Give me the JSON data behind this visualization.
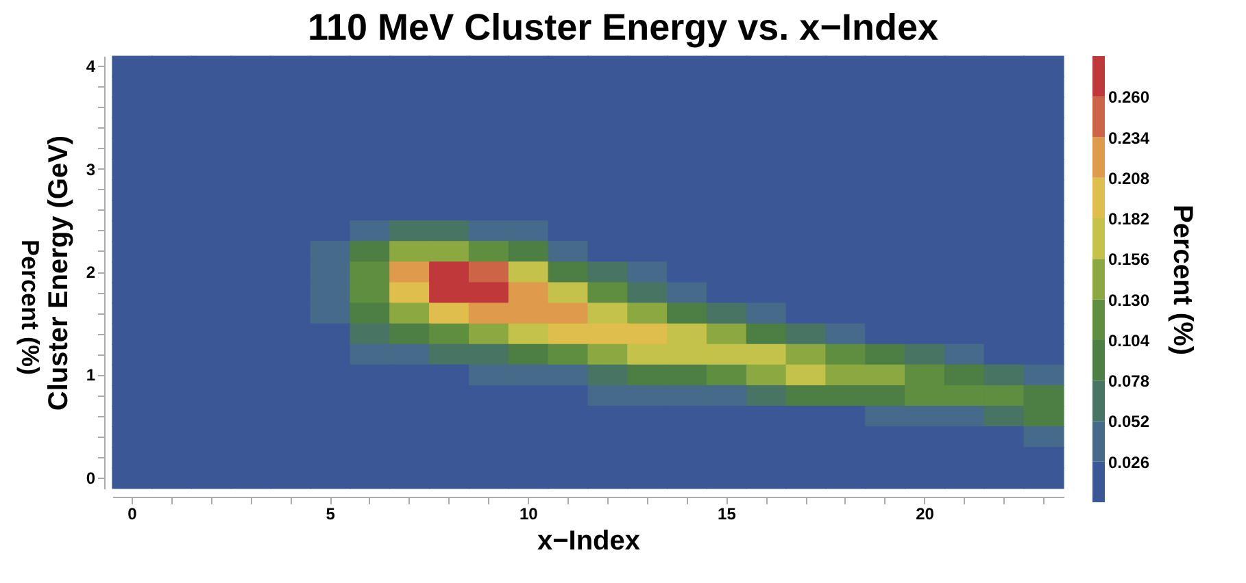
{
  "chart_data": {
    "type": "heatmap",
    "title": "110 MeV Cluster Energy vs. x−Index",
    "xlabel": "x−Index",
    "ylabel": "Cluster Energy (GeV)",
    "clabel": "Percent (%)",
    "annotations": [
      "Percent (%)"
    ],
    "categories": [
      "0",
      null,
      null,
      null,
      null,
      "5",
      null,
      null,
      null,
      null,
      "10",
      null,
      null,
      null,
      null,
      "15",
      null,
      null,
      null,
      null,
      "20",
      null,
      null,
      null
    ],
    "y_categories": [
      "4",
      null,
      null,
      null,
      null,
      "3",
      null,
      null,
      null,
      null,
      "2",
      null,
      null,
      null,
      null,
      "1",
      null,
      null,
      null,
      null,
      "0"
    ],
    "clim": [
      0,
      0.286
    ],
    "cticks": [
      0.026,
      0.052,
      0.078,
      0.104,
      {
        "value": 0.13,
        "label": "0.130"
      },
      0.156,
      0.182,
      0.208,
      0.234,
      {
        "value": 0.26,
        "label": "0.260"
      }
    ],
    "colors": [
      "#3c5796",
      "#466a89",
      "#487464",
      "#4d7f45",
      "#5f8e3f",
      "#8ba841",
      "#c4c24a",
      "#dfbe4e",
      "#de9b4c",
      "#cd6446",
      "#c0393a"
    ],
    "cells": [
      [
        0,
        0,
        0,
        0,
        0,
        0,
        0,
        0,
        0,
        0,
        0,
        0,
        0,
        0,
        0,
        0,
        0,
        0,
        0,
        0,
        0,
        0,
        0,
        0
      ],
      [
        0,
        0,
        0,
        0,
        0,
        0,
        0,
        0,
        0,
        0,
        0,
        0,
        0,
        0,
        0,
        0,
        0,
        0,
        0,
        0,
        0,
        0,
        0,
        0
      ],
      [
        0,
        0,
        0,
        0,
        0,
        0,
        0,
        0,
        0,
        0,
        0,
        0,
        0,
        0,
        0,
        0,
        0,
        0,
        0,
        0,
        0,
        0,
        0,
        0
      ],
      [
        0,
        0,
        0,
        0,
        0,
        0,
        0,
        0,
        0,
        0,
        0,
        0,
        0,
        0,
        0,
        0,
        0,
        0,
        0,
        0,
        0,
        0,
        0,
        0
      ],
      [
        0,
        0,
        0,
        0,
        0,
        0,
        0,
        0,
        0,
        0,
        0,
        0,
        0,
        0,
        0,
        0,
        0,
        0,
        0,
        0,
        0,
        0,
        0,
        0
      ],
      [
        0,
        0,
        0,
        0,
        0,
        0,
        0,
        0,
        0,
        0,
        0,
        0,
        0,
        0,
        0,
        0,
        0,
        0,
        0,
        0,
        0,
        0,
        0,
        0
      ],
      [
        0,
        0,
        0,
        0,
        0,
        0,
        0,
        0,
        0,
        0,
        0,
        0,
        0,
        0,
        0,
        0,
        0,
        0,
        0,
        0,
        0,
        0,
        0,
        0
      ],
      [
        0,
        0,
        0,
        0,
        0,
        0,
        0.01,
        0.01,
        0.01,
        0.01,
        0,
        0,
        0,
        0,
        0,
        0,
        0,
        0,
        0,
        0,
        0,
        0,
        0,
        0
      ],
      [
        0,
        0,
        0,
        0,
        0,
        0.02,
        0.04,
        0.06,
        0.06,
        0.04,
        0.03,
        0.01,
        0,
        0,
        0,
        0,
        0,
        0,
        0,
        0,
        0,
        0,
        0,
        0
      ],
      [
        0,
        0,
        0,
        0,
        0,
        0.03,
        0.09,
        0.14,
        0.15,
        0.12,
        0.08,
        0.04,
        0.02,
        0,
        0,
        0,
        0,
        0,
        0,
        0,
        0,
        0,
        0,
        0
      ],
      [
        0,
        0,
        0,
        0,
        0,
        0.03,
        0.12,
        0.22,
        0.27,
        0.24,
        0.16,
        0.1,
        0.06,
        0.03,
        0.01,
        0,
        0,
        0,
        0,
        0,
        0,
        0,
        0,
        0
      ],
      [
        0,
        0,
        0,
        0,
        0,
        0.03,
        0.11,
        0.2,
        0.26,
        0.26,
        0.23,
        0.17,
        0.12,
        0.07,
        0.04,
        0.02,
        0,
        0,
        0,
        0,
        0,
        0,
        0,
        0
      ],
      [
        0,
        0,
        0,
        0,
        0,
        0.03,
        0.09,
        0.15,
        0.19,
        0.21,
        0.22,
        0.21,
        0.18,
        0.14,
        0.09,
        0.06,
        0.04,
        0.02,
        0,
        0,
        0,
        0,
        0,
        0
      ],
      [
        0,
        0,
        0,
        0,
        0,
        0.02,
        0.06,
        0.09,
        0.11,
        0.13,
        0.16,
        0.19,
        0.2,
        0.19,
        0.17,
        0.13,
        0.09,
        0.06,
        0.05,
        0.02,
        0,
        0,
        0,
        0
      ],
      [
        0,
        0,
        0,
        0,
        0,
        0.02,
        0.04,
        0.05,
        0.06,
        0.07,
        0.08,
        0.11,
        0.14,
        0.16,
        0.18,
        0.18,
        0.16,
        0.14,
        0.11,
        0.08,
        0.06,
        0.04,
        0.02,
        0
      ],
      [
        0,
        0,
        0,
        0,
        0,
        0,
        0.01,
        0.02,
        0.02,
        0.03,
        0.04,
        0.05,
        0.06,
        0.08,
        0.1,
        0.12,
        0.15,
        0.16,
        0.15,
        0.14,
        0.12,
        0.1,
        0.07,
        0.04
      ],
      [
        0,
        0,
        0,
        0,
        0,
        0,
        0,
        0,
        0,
        0,
        0.01,
        0.02,
        0.03,
        0.03,
        0.04,
        0.05,
        0.06,
        0.08,
        0.09,
        0.1,
        0.11,
        0.12,
        0.11,
        0.09
      ],
      [
        0,
        0,
        0,
        0,
        0,
        0,
        0,
        0,
        0,
        0,
        0,
        0,
        0,
        0,
        0.01,
        0.01,
        0.02,
        0.02,
        0.02,
        0.03,
        0.04,
        0.05,
        0.07,
        0.08
      ],
      [
        0,
        0,
        0,
        0,
        0,
        0,
        0,
        0,
        0,
        0,
        0,
        0,
        0,
        0,
        0,
        0,
        0,
        0,
        0,
        0,
        0,
        0,
        0.01,
        0.03
      ],
      [
        0,
        0,
        0,
        0,
        0,
        0,
        0,
        0,
        0,
        0,
        0,
        0,
        0,
        0,
        0,
        0,
        0,
        0,
        0,
        0,
        0,
        0,
        0,
        0
      ],
      [
        0,
        0,
        0,
        0,
        0,
        0,
        0,
        0,
        0,
        0,
        0,
        0,
        0,
        0,
        0,
        0,
        0,
        0,
        0,
        0,
        0,
        0,
        0,
        0
      ]
    ]
  }
}
